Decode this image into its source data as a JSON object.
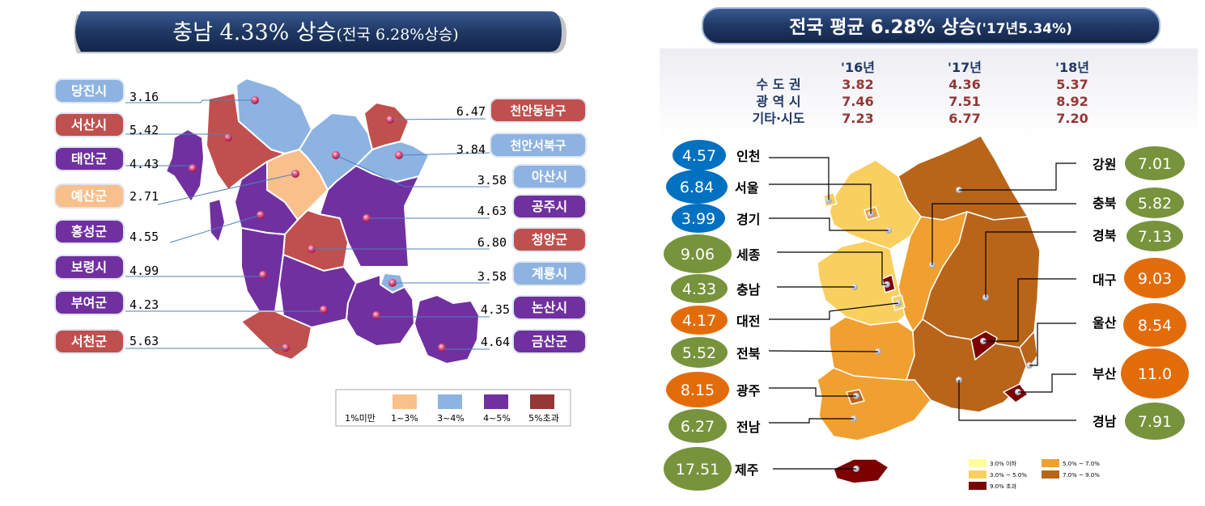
{
  "left_panel": {
    "title": "충남 4.33% 상승",
    "title_sub": "(전국 6.28%상승)",
    "regions": [
      {
        "name": "당진시",
        "value": "3.16",
        "cat": "3~4"
      },
      {
        "name": "서산시",
        "value": "5.42",
        "cat": "5+"
      },
      {
        "name": "태안군",
        "value": "4.43",
        "cat": "4~5"
      },
      {
        "name": "예산군",
        "value": "2.71",
        "cat": "1~3"
      },
      {
        "name": "홍성군",
        "value": "4.55",
        "cat": "4~5"
      },
      {
        "name": "보령시",
        "value": "4.99",
        "cat": "4~5"
      },
      {
        "name": "부여군",
        "value": "4.23",
        "cat": "4~5"
      },
      {
        "name": "서천군",
        "value": "5.63",
        "cat": "5+"
      },
      {
        "name": "천안동남구",
        "value": "6.47",
        "cat": "5+"
      },
      {
        "name": "천안서북구",
        "value": "3.84",
        "cat": "3~4"
      },
      {
        "name": "아산시",
        "value": "3.58",
        "cat": "3~4"
      },
      {
        "name": "공주시",
        "value": "4.63",
        "cat": "4~5"
      },
      {
        "name": "청양군",
        "value": "6.80",
        "cat": "5+"
      },
      {
        "name": "계룡시",
        "value": "3.58",
        "cat": "3~4"
      },
      {
        "name": "논산시",
        "value": "4.35",
        "cat": "4~5"
      },
      {
        "name": "금산군",
        "value": "4.64",
        "cat": "4~5"
      }
    ],
    "legend": [
      {
        "label": "1%미만",
        "color": ""
      },
      {
        "label": "1~3%",
        "color": "#f9c08c"
      },
      {
        "label": "3~4%",
        "color": "#8db3e2"
      },
      {
        "label": "4~5%",
        "color": "#7030a0"
      },
      {
        "label": "5%초과",
        "color": "#953735"
      }
    ]
  },
  "right_panel": {
    "title": "전국 평균 6.28% 상승",
    "title_sub": "('17년5.34%)",
    "table": {
      "headers": [
        "'16년",
        "'17년",
        "'18년"
      ],
      "rows": [
        {
          "label": "수 도 권",
          "values": [
            "3.82",
            "4.36",
            "5.37"
          ]
        },
        {
          "label": "광 역 시",
          "values": [
            "7.46",
            "7.51",
            "8.92"
          ]
        },
        {
          "label": "기타·시도",
          "values": [
            "7.23",
            "6.77",
            "7.20"
          ]
        }
      ]
    },
    "regions": [
      {
        "name": "인천",
        "value": "4.57"
      },
      {
        "name": "서울",
        "value": "6.84"
      },
      {
        "name": "경기",
        "value": "3.99"
      },
      {
        "name": "세종",
        "value": "9.06"
      },
      {
        "name": "충남",
        "value": "4.33"
      },
      {
        "name": "대전",
        "value": "4.17"
      },
      {
        "name": "전북",
        "value": "5.52"
      },
      {
        "name": "광주",
        "value": "8.15"
      },
      {
        "name": "전남",
        "value": "6.27"
      },
      {
        "name": "제주",
        "value": "17.51"
      },
      {
        "name": "강원",
        "value": "7.01"
      },
      {
        "name": "충북",
        "value": "5.82"
      },
      {
        "name": "경북",
        "value": "7.13"
      },
      {
        "name": "대구",
        "value": "9.03"
      },
      {
        "name": "울산",
        "value": "8.54"
      },
      {
        "name": "부산",
        "value": "11.0"
      },
      {
        "name": "경남",
        "value": "7.91"
      }
    ],
    "legend": [
      {
        "label": "3.0% 이하",
        "color": "#ffff99"
      },
      {
        "label": "5.0% ~ 7.0%",
        "color": "#f0a030"
      },
      {
        "label": "3.0% ~ 5.0%",
        "color": "#f9d060"
      },
      {
        "label": "7.0% ~ 9.0%",
        "color": "#b8651a"
      },
      {
        "label": "9.0% 초과",
        "color": "#7b0000"
      }
    ]
  },
  "colors": {
    "purple": "#7030a0",
    "red": "#c0504d",
    "lightblue": "#8db3e2",
    "peach": "#f9c08c",
    "dark_red": "#953735",
    "circle_blue": "#0070c0",
    "circle_green": "#77933c",
    "circle_orange": "#e36c0a",
    "title_navy": "#1f3864"
  }
}
